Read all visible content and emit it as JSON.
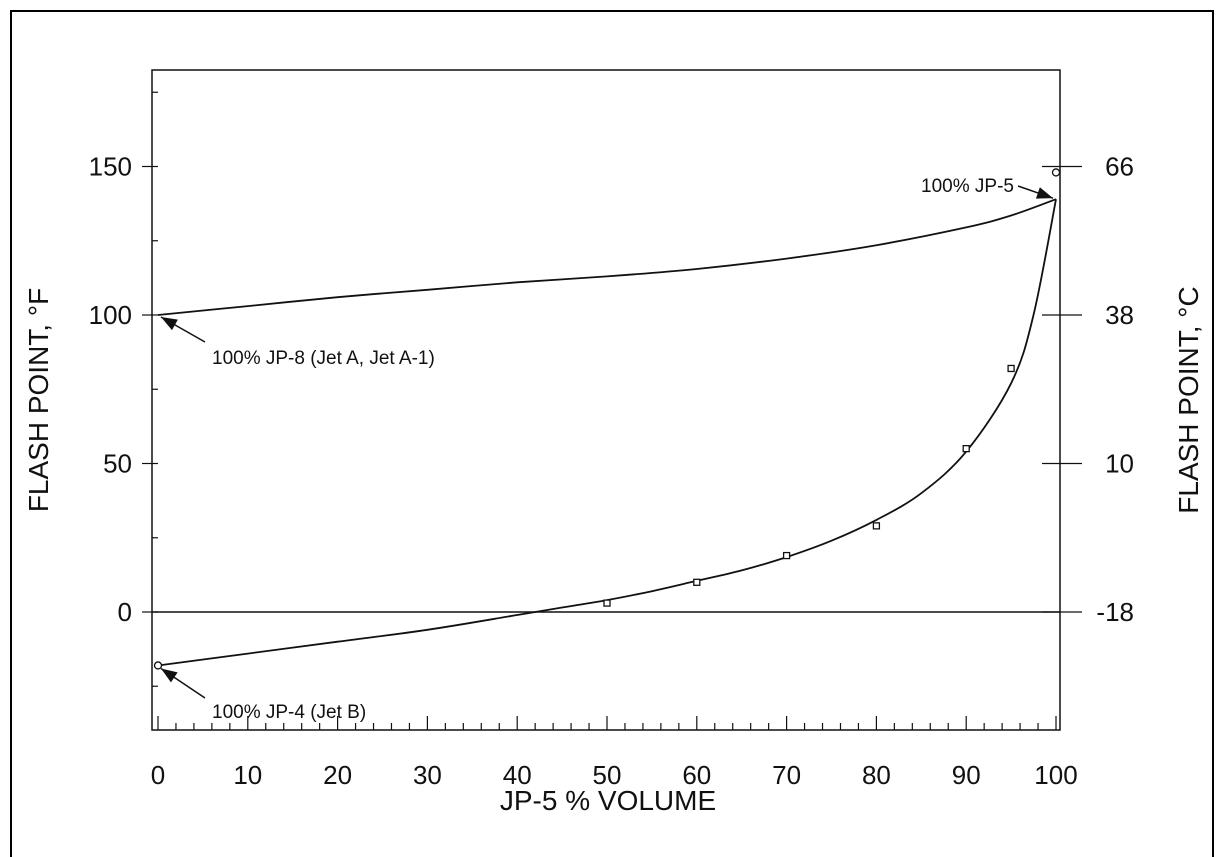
{
  "chart_data": {
    "type": "line",
    "xlabel": "JP-5 % VOLUME",
    "ylabel": "FLASH POINT, °F",
    "ylabel_right": "FLASH POINT, °C",
    "xlim": [
      0,
      100
    ],
    "ylim": [
      -40,
      180
    ],
    "x_ticks": [
      0,
      10,
      20,
      30,
      40,
      50,
      60,
      70,
      80,
      90,
      100
    ],
    "y_ticks": [
      0,
      50,
      100,
      150
    ],
    "y_ticks_right": [
      {
        "f": 150,
        "label": "66"
      },
      {
        "f": 100,
        "label": "38"
      },
      {
        "f": 50,
        "label": "10"
      },
      {
        "f": 0,
        "label": "-18"
      }
    ],
    "grid": false,
    "series": [
      {
        "x": [
          0,
          10,
          20,
          30,
          40,
          50,
          60,
          70,
          80,
          90,
          95,
          100
        ],
        "y": [
          100,
          103,
          106,
          108.5,
          111,
          113,
          115.5,
          119,
          123.5,
          129.5,
          133.5,
          139
        ]
      },
      {
        "x": [
          0,
          10,
          20,
          30,
          40,
          45,
          50,
          55,
          60,
          65,
          70,
          75,
          80,
          85,
          90,
          95,
          97.5,
          100
        ],
        "y": [
          -18,
          -14,
          -10,
          -6,
          -1,
          1.5,
          4,
          7,
          10.5,
          14,
          18.5,
          24,
          31,
          40,
          54,
          77,
          100,
          139
        ]
      }
    ],
    "points": [
      {
        "x": 0,
        "y": -18,
        "marker": "circle"
      },
      {
        "x": 50,
        "y": 3,
        "marker": "square"
      },
      {
        "x": 60,
        "y": 10,
        "marker": "square"
      },
      {
        "x": 70,
        "y": 19,
        "marker": "square"
      },
      {
        "x": 80,
        "y": 29,
        "marker": "square"
      },
      {
        "x": 90,
        "y": 55,
        "marker": "square"
      },
      {
        "x": 95,
        "y": 82,
        "marker": "square"
      },
      {
        "x": 100,
        "y": 148,
        "marker": "circle"
      }
    ],
    "zero_line_y": 0,
    "annotations": [
      {
        "id": "jp5",
        "text": "100% JP-5",
        "x": 100,
        "y": 139
      },
      {
        "id": "jp8",
        "text": "100% JP-8 (Jet A, Jet A-1)",
        "x": 0,
        "y": 100
      },
      {
        "id": "jp4",
        "text": "100% JP-4 (Jet B)",
        "x": 0,
        "y": -18
      }
    ]
  }
}
